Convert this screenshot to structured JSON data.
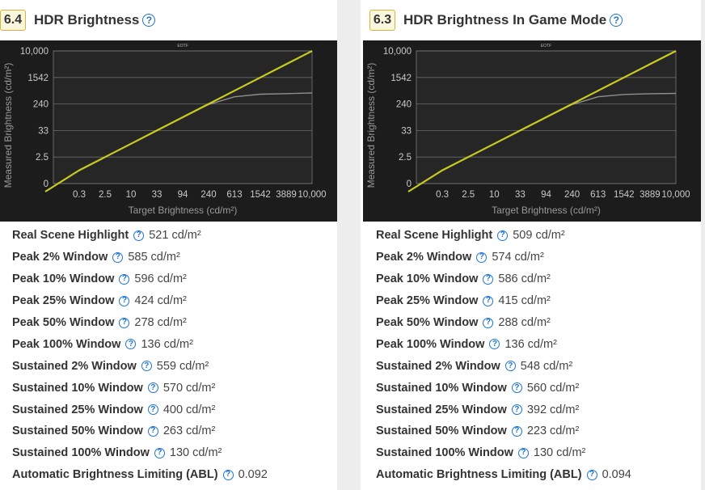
{
  "colors": {
    "badge_border": "#d6b53a",
    "help_blue": "#1f74d1",
    "target_line": "#c9cc1e",
    "measured_line": "#8e8e8e",
    "chart_bg": "#1c1c1c",
    "plot_bg": "#262626"
  },
  "icons": {
    "help": "question-circle-icon"
  },
  "cards": [
    {
      "score": "6.4",
      "title": "HDR Brightness",
      "metrics": [
        {
          "label": "Real Scene Highlight",
          "value": "521 cd/m²"
        },
        {
          "label": "Peak 2% Window",
          "value": "585 cd/m²"
        },
        {
          "label": "Peak 10% Window",
          "value": "596 cd/m²"
        },
        {
          "label": "Peak 25% Window",
          "value": "424 cd/m²"
        },
        {
          "label": "Peak 50% Window",
          "value": "278 cd/m²"
        },
        {
          "label": "Peak 100% Window",
          "value": "136 cd/m²"
        },
        {
          "label": "Sustained 2% Window",
          "value": "559 cd/m²"
        },
        {
          "label": "Sustained 10% Window",
          "value": "570 cd/m²"
        },
        {
          "label": "Sustained 25% Window",
          "value": "400 cd/m²"
        },
        {
          "label": "Sustained 50% Window",
          "value": "263 cd/m²"
        },
        {
          "label": "Sustained 100% Window",
          "value": "130 cd/m²"
        },
        {
          "label": "Automatic Brightness Limiting (ABL)",
          "value": "0.092"
        }
      ]
    },
    {
      "score": "6.3",
      "title": "HDR Brightness In Game Mode",
      "metrics": [
        {
          "label": "Real Scene Highlight",
          "value": "509 cd/m²"
        },
        {
          "label": "Peak 2% Window",
          "value": "574 cd/m²"
        },
        {
          "label": "Peak 10% Window",
          "value": "586 cd/m²"
        },
        {
          "label": "Peak 25% Window",
          "value": "415 cd/m²"
        },
        {
          "label": "Peak 50% Window",
          "value": "288 cd/m²"
        },
        {
          "label": "Peak 100% Window",
          "value": "136 cd/m²"
        },
        {
          "label": "Sustained 2% Window",
          "value": "548 cd/m²"
        },
        {
          "label": "Sustained 10% Window",
          "value": "560 cd/m²"
        },
        {
          "label": "Sustained 25% Window",
          "value": "392 cd/m²"
        },
        {
          "label": "Sustained 50% Window",
          "value": "223 cd/m²"
        },
        {
          "label": "Sustained 100% Window",
          "value": "130 cd/m²"
        },
        {
          "label": "Automatic Brightness Limiting (ABL)",
          "value": "0.094"
        }
      ]
    }
  ],
  "chart_data": [
    {
      "type": "line",
      "title": "EOTF",
      "xlabel": "Target Brightness (cd/m²)",
      "ylabel": "Measured Brightness (cd/m²)",
      "x_scale": "log",
      "y_scale": "log",
      "x_ticks": [
        "0.3",
        "2.5",
        "10",
        "33",
        "94",
        "240",
        "613",
        "1542",
        "3889",
        "10,000"
      ],
      "y_ticks": [
        "0",
        "2.5",
        "33",
        "240",
        "1542",
        "10,000"
      ],
      "grid": true,
      "series": [
        {
          "name": "Target",
          "color": "#c9cc1e",
          "x": [
            0,
            0.3,
            2.5,
            10,
            33,
            94,
            240,
            613,
            1542,
            3889,
            10000
          ],
          "y": [
            0,
            0.3,
            2.5,
            10,
            33,
            94,
            240,
            613,
            1542,
            3889,
            10000
          ]
        },
        {
          "name": "Measured",
          "color": "#8e8e8e",
          "x": [
            0,
            0.3,
            2.5,
            10,
            33,
            94,
            240,
            613,
            1542,
            3889,
            10000
          ],
          "y": [
            0,
            0.3,
            2.5,
            10,
            33,
            94,
            230,
            400,
            480,
            500,
            521
          ]
        }
      ]
    },
    {
      "type": "line",
      "title": "EOTF",
      "xlabel": "Target Brightness (cd/m²)",
      "ylabel": "Measured Brightness (cd/m²)",
      "x_scale": "log",
      "y_scale": "log",
      "x_ticks": [
        "0.3",
        "2.5",
        "10",
        "33",
        "94",
        "240",
        "613",
        "1542",
        "3889",
        "10,000"
      ],
      "y_ticks": [
        "0",
        "2.5",
        "33",
        "240",
        "1542",
        "10,000"
      ],
      "grid": true,
      "series": [
        {
          "name": "Target",
          "color": "#c9cc1e",
          "x": [
            0,
            0.3,
            2.5,
            10,
            33,
            94,
            240,
            613,
            1542,
            3889,
            10000
          ],
          "y": [
            0,
            0.3,
            2.5,
            10,
            33,
            94,
            240,
            613,
            1542,
            3889,
            10000
          ]
        },
        {
          "name": "Measured",
          "color": "#8e8e8e",
          "x": [
            0,
            0.3,
            2.5,
            10,
            33,
            94,
            240,
            613,
            1542,
            3889,
            10000
          ],
          "y": [
            0,
            0.3,
            2.5,
            10,
            33,
            94,
            230,
            400,
            470,
            495,
            509
          ]
        }
      ]
    }
  ]
}
